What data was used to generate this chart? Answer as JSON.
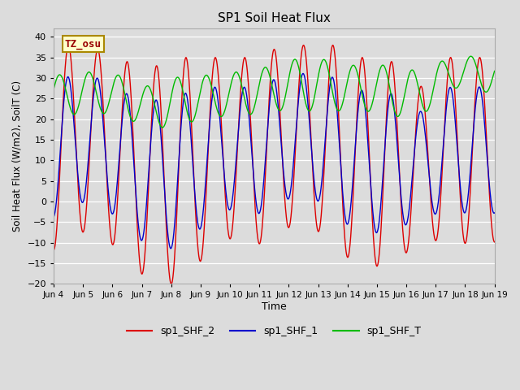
{
  "title": "SP1 Soil Heat Flux",
  "ylabel": "Soil Heat Flux (W/m2), SoilT (C)",
  "xlabel": "Time",
  "annotation": "TZ_osu",
  "annotation_color": "#990000",
  "annotation_bg": "#ffffcc",
  "annotation_border": "#aa8800",
  "ylim": [
    -20,
    42
  ],
  "yticks": [
    -20,
    -15,
    -10,
    -5,
    0,
    5,
    10,
    15,
    20,
    25,
    30,
    35,
    40
  ],
  "xtick_labels": [
    "Jun 4",
    "Jun 5",
    "Jun 6",
    "Jun 7",
    "Jun 8",
    "Jun 9",
    "Jun 10",
    "Jun 11",
    "Jun 12",
    "Jun 13",
    "Jun 14",
    "Jun 15",
    "Jun 16",
    "Jun 17",
    "Jun 18",
    "Jun 19"
  ],
  "bg_color": "#dcdcdc",
  "line1_color": "#dd0000",
  "line2_color": "#0000cc",
  "line3_color": "#00bb00",
  "legend_labels": [
    "sp1_SHF_2",
    "sp1_SHF_1",
    "sp1_SHF_T"
  ],
  "n_days": 15,
  "n_points": 2000
}
